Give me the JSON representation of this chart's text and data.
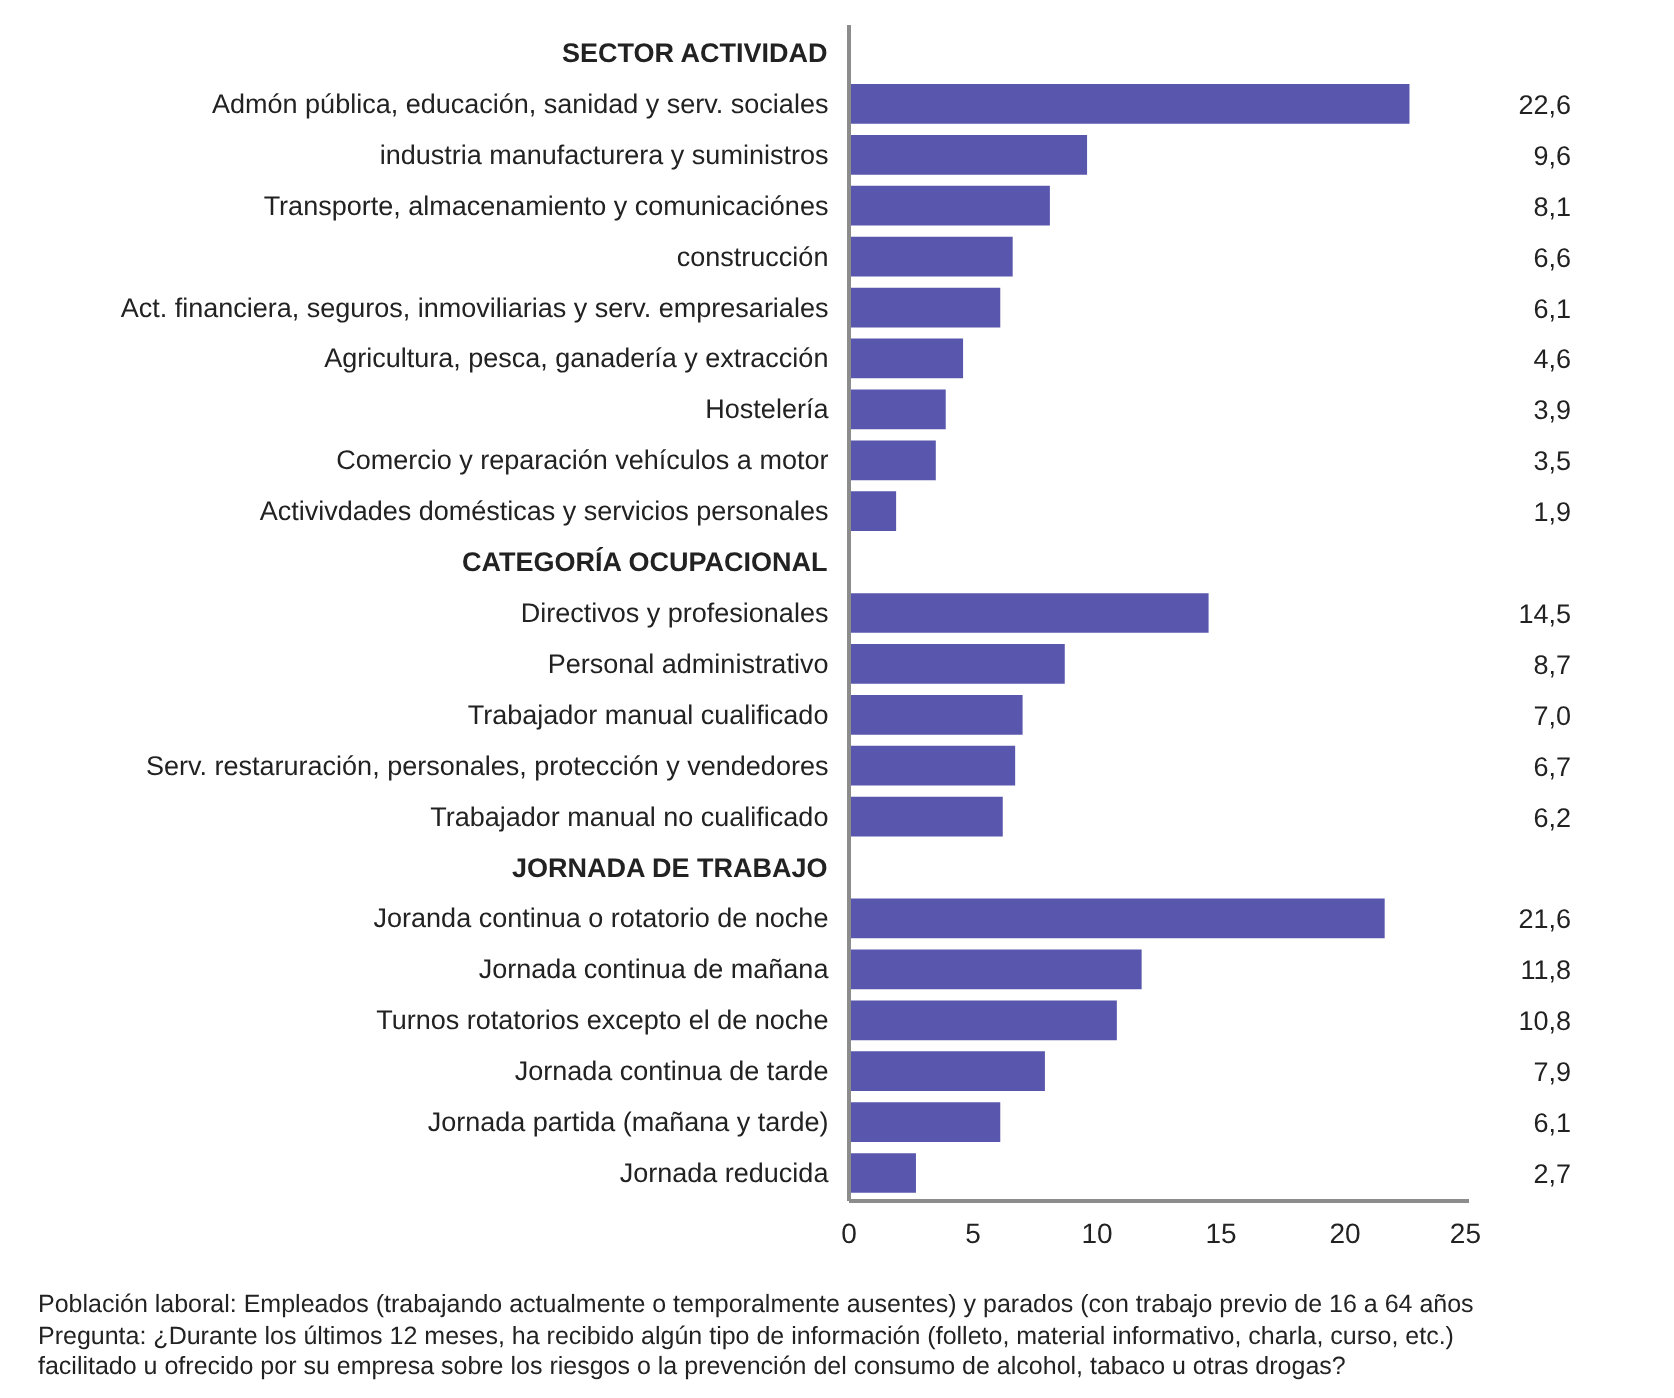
{
  "chart_data": {
    "type": "bar",
    "orientation": "horizontal",
    "categories": [
      "SECTOR ACTIVIDAD",
      "Admón pública, educación, sanidad y serv. sociales",
      "industria manufacturera y suministros",
      "Transporte, almacenamiento y comunicaciónes",
      "construcción",
      "Act. financiera, seguros, inmoviliarias y serv. empresariales",
      "Agricultura, pesca, ganadería y extracción",
      "Hostelería",
      "Comercio y reparación vehículos a motor",
      "Activivdades domésticas y servicios personales",
      "CATEGORÍA OCUPACIONAL",
      "Directivos y profesionales",
      "Personal administrativo",
      "Trabajador manual cualificado",
      "Serv. restaruración, personales, protección y vendedores",
      "Trabajador manual no cualificado",
      "JORNADA DE TRABAJO",
      "Joranda continua o rotatorio de noche",
      "Jornada continua de mañana",
      "Turnos rotatorios excepto el de noche",
      "Jornada continua de tarde",
      "Jornada partida (mañana y tarde)",
      "Jornada reducida"
    ],
    "values": [
      null,
      22.6,
      9.6,
      8.1,
      6.6,
      6.1,
      4.6,
      3.9,
      3.5,
      1.9,
      null,
      14.5,
      8.7,
      7.0,
      6.7,
      6.2,
      null,
      21.6,
      11.8,
      10.8,
      7.9,
      6.1,
      2.7
    ],
    "value_labels": [
      null,
      "22,6",
      "9,6",
      "8,1",
      "6,6",
      "6,1",
      "4,6",
      "3,9",
      "3,5",
      "1,9",
      null,
      "14,5",
      "8,7",
      "7,0",
      "6,7",
      "6,2",
      null,
      "21,6",
      "11,8",
      "10,8",
      "7,9",
      "6,1",
      "2,7"
    ],
    "color": "#5957ad",
    "xlim": [
      0,
      25
    ],
    "xticks": [
      0,
      5,
      10,
      15,
      20,
      25
    ],
    "grid": false,
    "annotations": [
      "Población laboral: Empleados (trabajando actualmente o temporalmente ausentes) y parados (con trabajo previo de 16 a 64 años",
      "Pregunta: ¿Durante los últimos 12 meses, ha recibido algún tipo de información (folleto, material informativo, charla, curso, etc.) facilitado u ofrecido por su empresa sobre los riesgos o la prevención del consumo de alcohol, tabaco u otras drogas?"
    ]
  }
}
